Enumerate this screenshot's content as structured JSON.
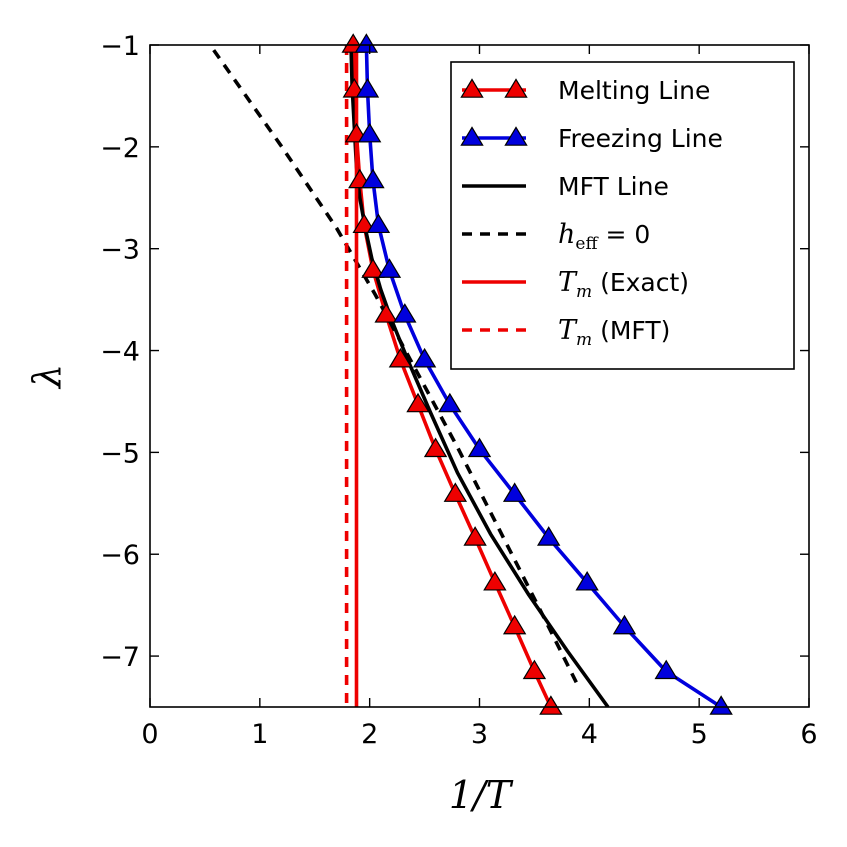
{
  "chart_data": {
    "type": "line",
    "title": "",
    "xlabel": "1/T",
    "ylabel": "λ",
    "xlim": [
      0,
      6
    ],
    "ylim": [
      -7.5,
      -1
    ],
    "xticks": [
      0,
      1,
      2,
      3,
      4,
      5,
      6
    ],
    "yticks": [
      -1,
      -2,
      -3,
      -4,
      -5,
      -6,
      -7
    ],
    "xtick_labels": [
      "0",
      "1",
      "2",
      "3",
      "4",
      "5",
      "6"
    ],
    "ytick_labels": [
      "−1",
      "−2",
      "−3",
      "−4",
      "−5",
      "−6",
      "−7"
    ],
    "legend_position": "top-right",
    "colors": {
      "red": "#ee0000",
      "blue": "#0000dd",
      "black": "#000000"
    },
    "series": [
      {
        "name": "Melting Line",
        "legend_text": "Melting Line",
        "color": "#ee0000",
        "style": "solid",
        "marker": "triangle-up",
        "x": [
          1.85,
          1.86,
          1.88,
          1.91,
          1.95,
          2.03,
          2.15,
          2.28,
          2.44,
          2.6,
          2.78,
          2.96,
          3.14,
          3.32,
          3.5,
          3.65
        ],
        "y": [
          -1.0,
          -1.44,
          -1.88,
          -2.33,
          -2.77,
          -3.21,
          -3.65,
          -4.09,
          -4.53,
          -4.97,
          -5.41,
          -5.84,
          -6.28,
          -6.71,
          -7.15,
          -7.5
        ]
      },
      {
        "name": "Freezing Line",
        "legend_text": "Freezing Line",
        "color": "#0000dd",
        "style": "solid",
        "marker": "triangle-up",
        "x": [
          1.97,
          1.98,
          2.0,
          2.03,
          2.08,
          2.18,
          2.32,
          2.5,
          2.73,
          3.0,
          3.32,
          3.63,
          3.98,
          4.32,
          4.7,
          5.2
        ],
        "y": [
          -1.0,
          -1.44,
          -1.88,
          -2.33,
          -2.77,
          -3.21,
          -3.65,
          -4.09,
          -4.53,
          -4.97,
          -5.41,
          -5.84,
          -6.28,
          -6.71,
          -7.15,
          -7.5
        ]
      },
      {
        "name": "MFT Line",
        "legend_text": "MFT Line",
        "color": "#000000",
        "style": "solid",
        "marker": "none",
        "x": [
          1.83,
          1.84,
          1.86,
          1.88,
          1.91,
          1.96,
          2.02,
          2.1,
          2.2,
          2.35,
          2.55,
          2.8,
          3.1,
          3.45,
          3.8,
          4.17
        ],
        "y": [
          -1.0,
          -1.4,
          -1.8,
          -2.2,
          -2.5,
          -2.8,
          -3.1,
          -3.4,
          -3.7,
          -4.1,
          -4.6,
          -5.2,
          -5.8,
          -6.4,
          -6.95,
          -7.5
        ]
      },
      {
        "name": "h_eff = 0",
        "legend_math": "h",
        "legend_sub": "eff",
        "legend_tail": " = 0",
        "color": "#000000",
        "style": "dashed",
        "marker": "none",
        "x": [
          0.58,
          1.2,
          1.7,
          2.05,
          2.4,
          2.8,
          3.2,
          3.6,
          3.9
        ],
        "y": [
          -1.05,
          -2.0,
          -2.8,
          -3.45,
          -4.15,
          -4.95,
          -5.8,
          -6.65,
          -7.3
        ]
      },
      {
        "name": "T_m (Exact)",
        "legend_math": "T",
        "legend_sub": "m",
        "legend_tail": " (Exact)",
        "color": "#ee0000",
        "style": "solid",
        "marker": "none",
        "x": [
          1.88,
          1.88
        ],
        "y": [
          -1.0,
          -7.5
        ]
      },
      {
        "name": "T_m (MFT)",
        "legend_math": "T",
        "legend_sub": "m",
        "legend_tail": " (MFT)",
        "color": "#ee0000",
        "style": "dashed",
        "marker": "none",
        "x": [
          1.79,
          1.79
        ],
        "y": [
          -1.0,
          -7.5
        ]
      }
    ]
  }
}
